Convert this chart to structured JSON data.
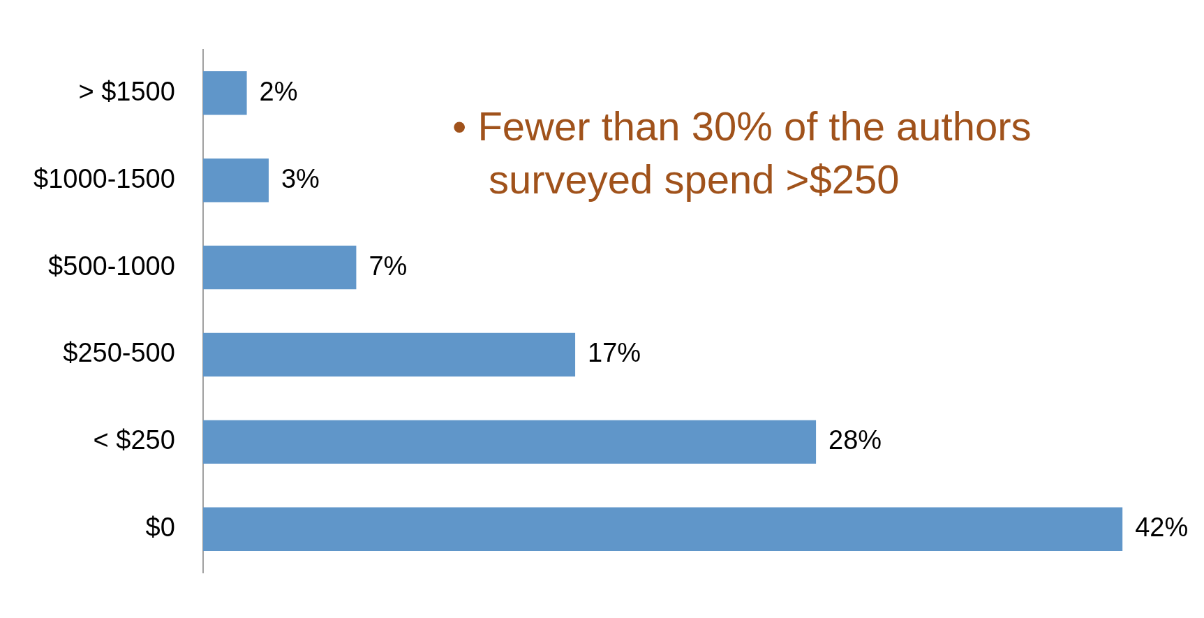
{
  "chart_data": {
    "type": "bar",
    "orientation": "horizontal",
    "categories": [
      "> $1500",
      "$1000-1500",
      "$500-1000",
      "$250-500",
      "< $250",
      "$0"
    ],
    "values": [
      2,
      3,
      7,
      17,
      28,
      42
    ],
    "value_labels": [
      "2%",
      "3%",
      "7%",
      "17%",
      "28%",
      "42%"
    ],
    "color": "#6096c9",
    "annotations": [
      "• Fewer than 30% of the authors surveyed spend >$250"
    ]
  }
}
